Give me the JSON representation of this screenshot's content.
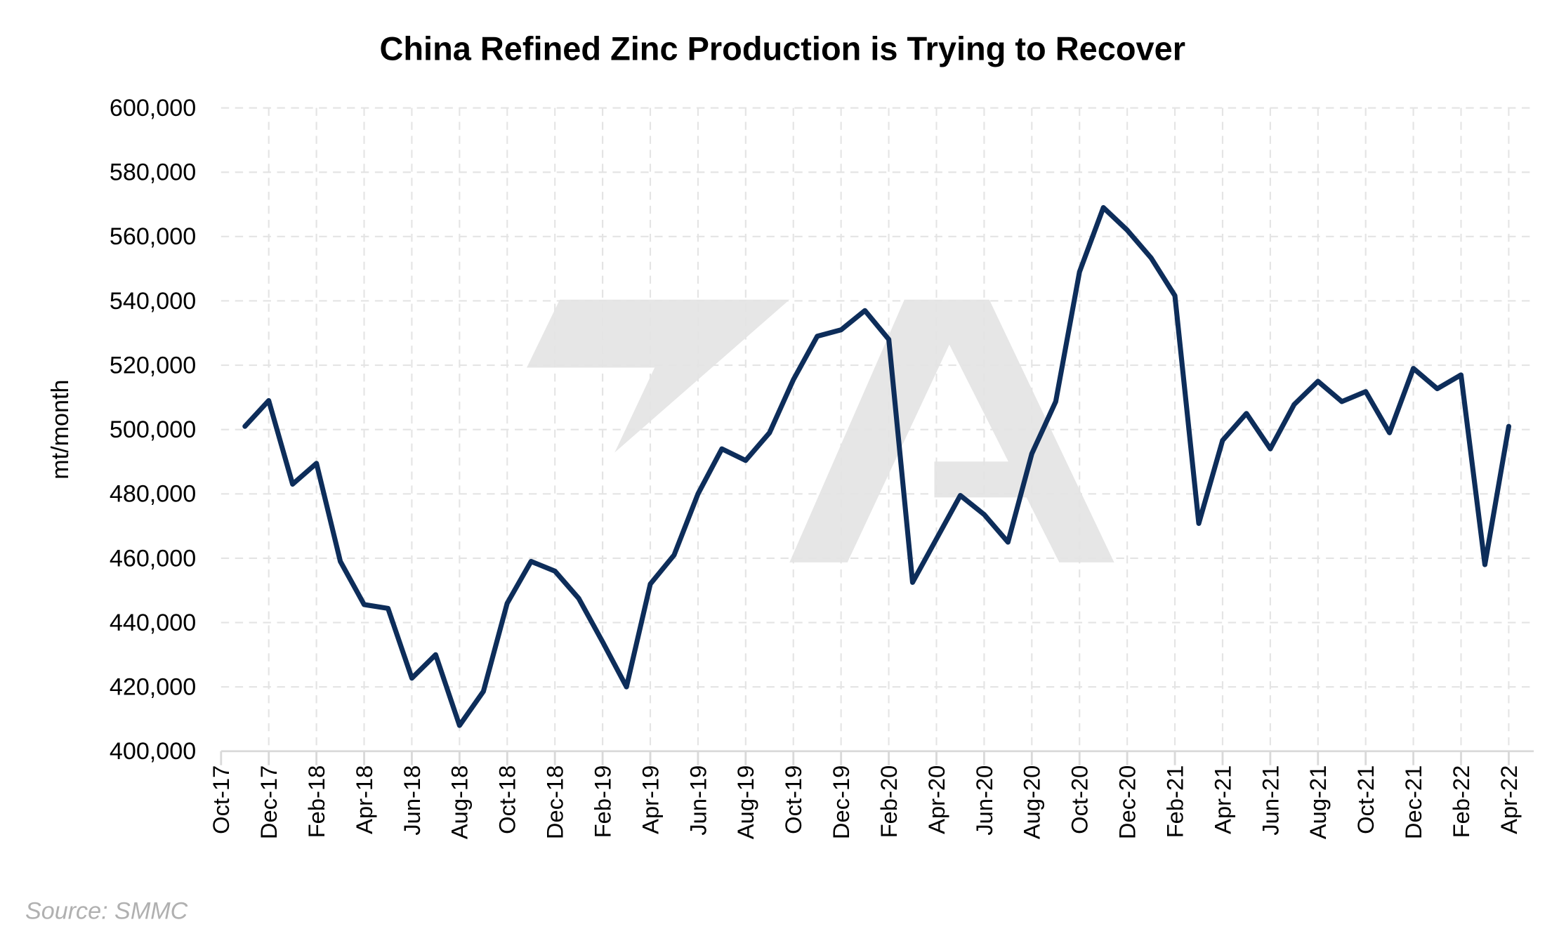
{
  "chart_data": {
    "type": "line",
    "title": "China Refined Zinc Production is Trying to Recover",
    "xlabel": "",
    "ylabel": "mt/month",
    "source": "Source: SMMC",
    "watermark": "7A",
    "ylim": [
      400000,
      600000
    ],
    "ytick_step": 20000,
    "yticks": [
      "400,000",
      "420,000",
      "440,000",
      "460,000",
      "480,000",
      "500,000",
      "520,000",
      "540,000",
      "560,000",
      "580,000",
      "600,000"
    ],
    "xticks": [
      "Oct-17",
      "Dec-17",
      "Feb-18",
      "Apr-18",
      "Jun-18",
      "Aug-18",
      "Oct-18",
      "Dec-18",
      "Feb-19",
      "Apr-19",
      "Jun-19",
      "Aug-19",
      "Oct-19",
      "Dec-19",
      "Feb-20",
      "Apr-20",
      "Jun-20",
      "Aug-20",
      "Oct-20",
      "Dec-20",
      "Feb-21",
      "Apr-21",
      "Jun-21",
      "Aug-21",
      "Oct-21",
      "Dec-21",
      "Feb-22",
      "Apr-22"
    ],
    "grid": true,
    "line_color": "#0d2d5a",
    "series": [
      {
        "name": "China refined zinc production",
        "x_start": "Nov-17",
        "x_start_index": 1,
        "values": [
          501000,
          509000,
          483000,
          489500,
          459000,
          445600,
          444400,
          422700,
          430000,
          408000,
          418600,
          446000,
          459000,
          456000,
          447500,
          434000,
          420000,
          452000,
          461000,
          480000,
          494000,
          490400,
          499000,
          515500,
          529000,
          531000,
          537000,
          528000,
          452500,
          466000,
          479500,
          473600,
          465000,
          492500,
          508700,
          549000,
          569000,
          562000,
          553400,
          541600,
          470800,
          496600,
          505000,
          494000,
          507800,
          515000,
          508700,
          511800,
          499000,
          519000,
          512700,
          517000,
          458000,
          501000
        ]
      }
    ]
  }
}
